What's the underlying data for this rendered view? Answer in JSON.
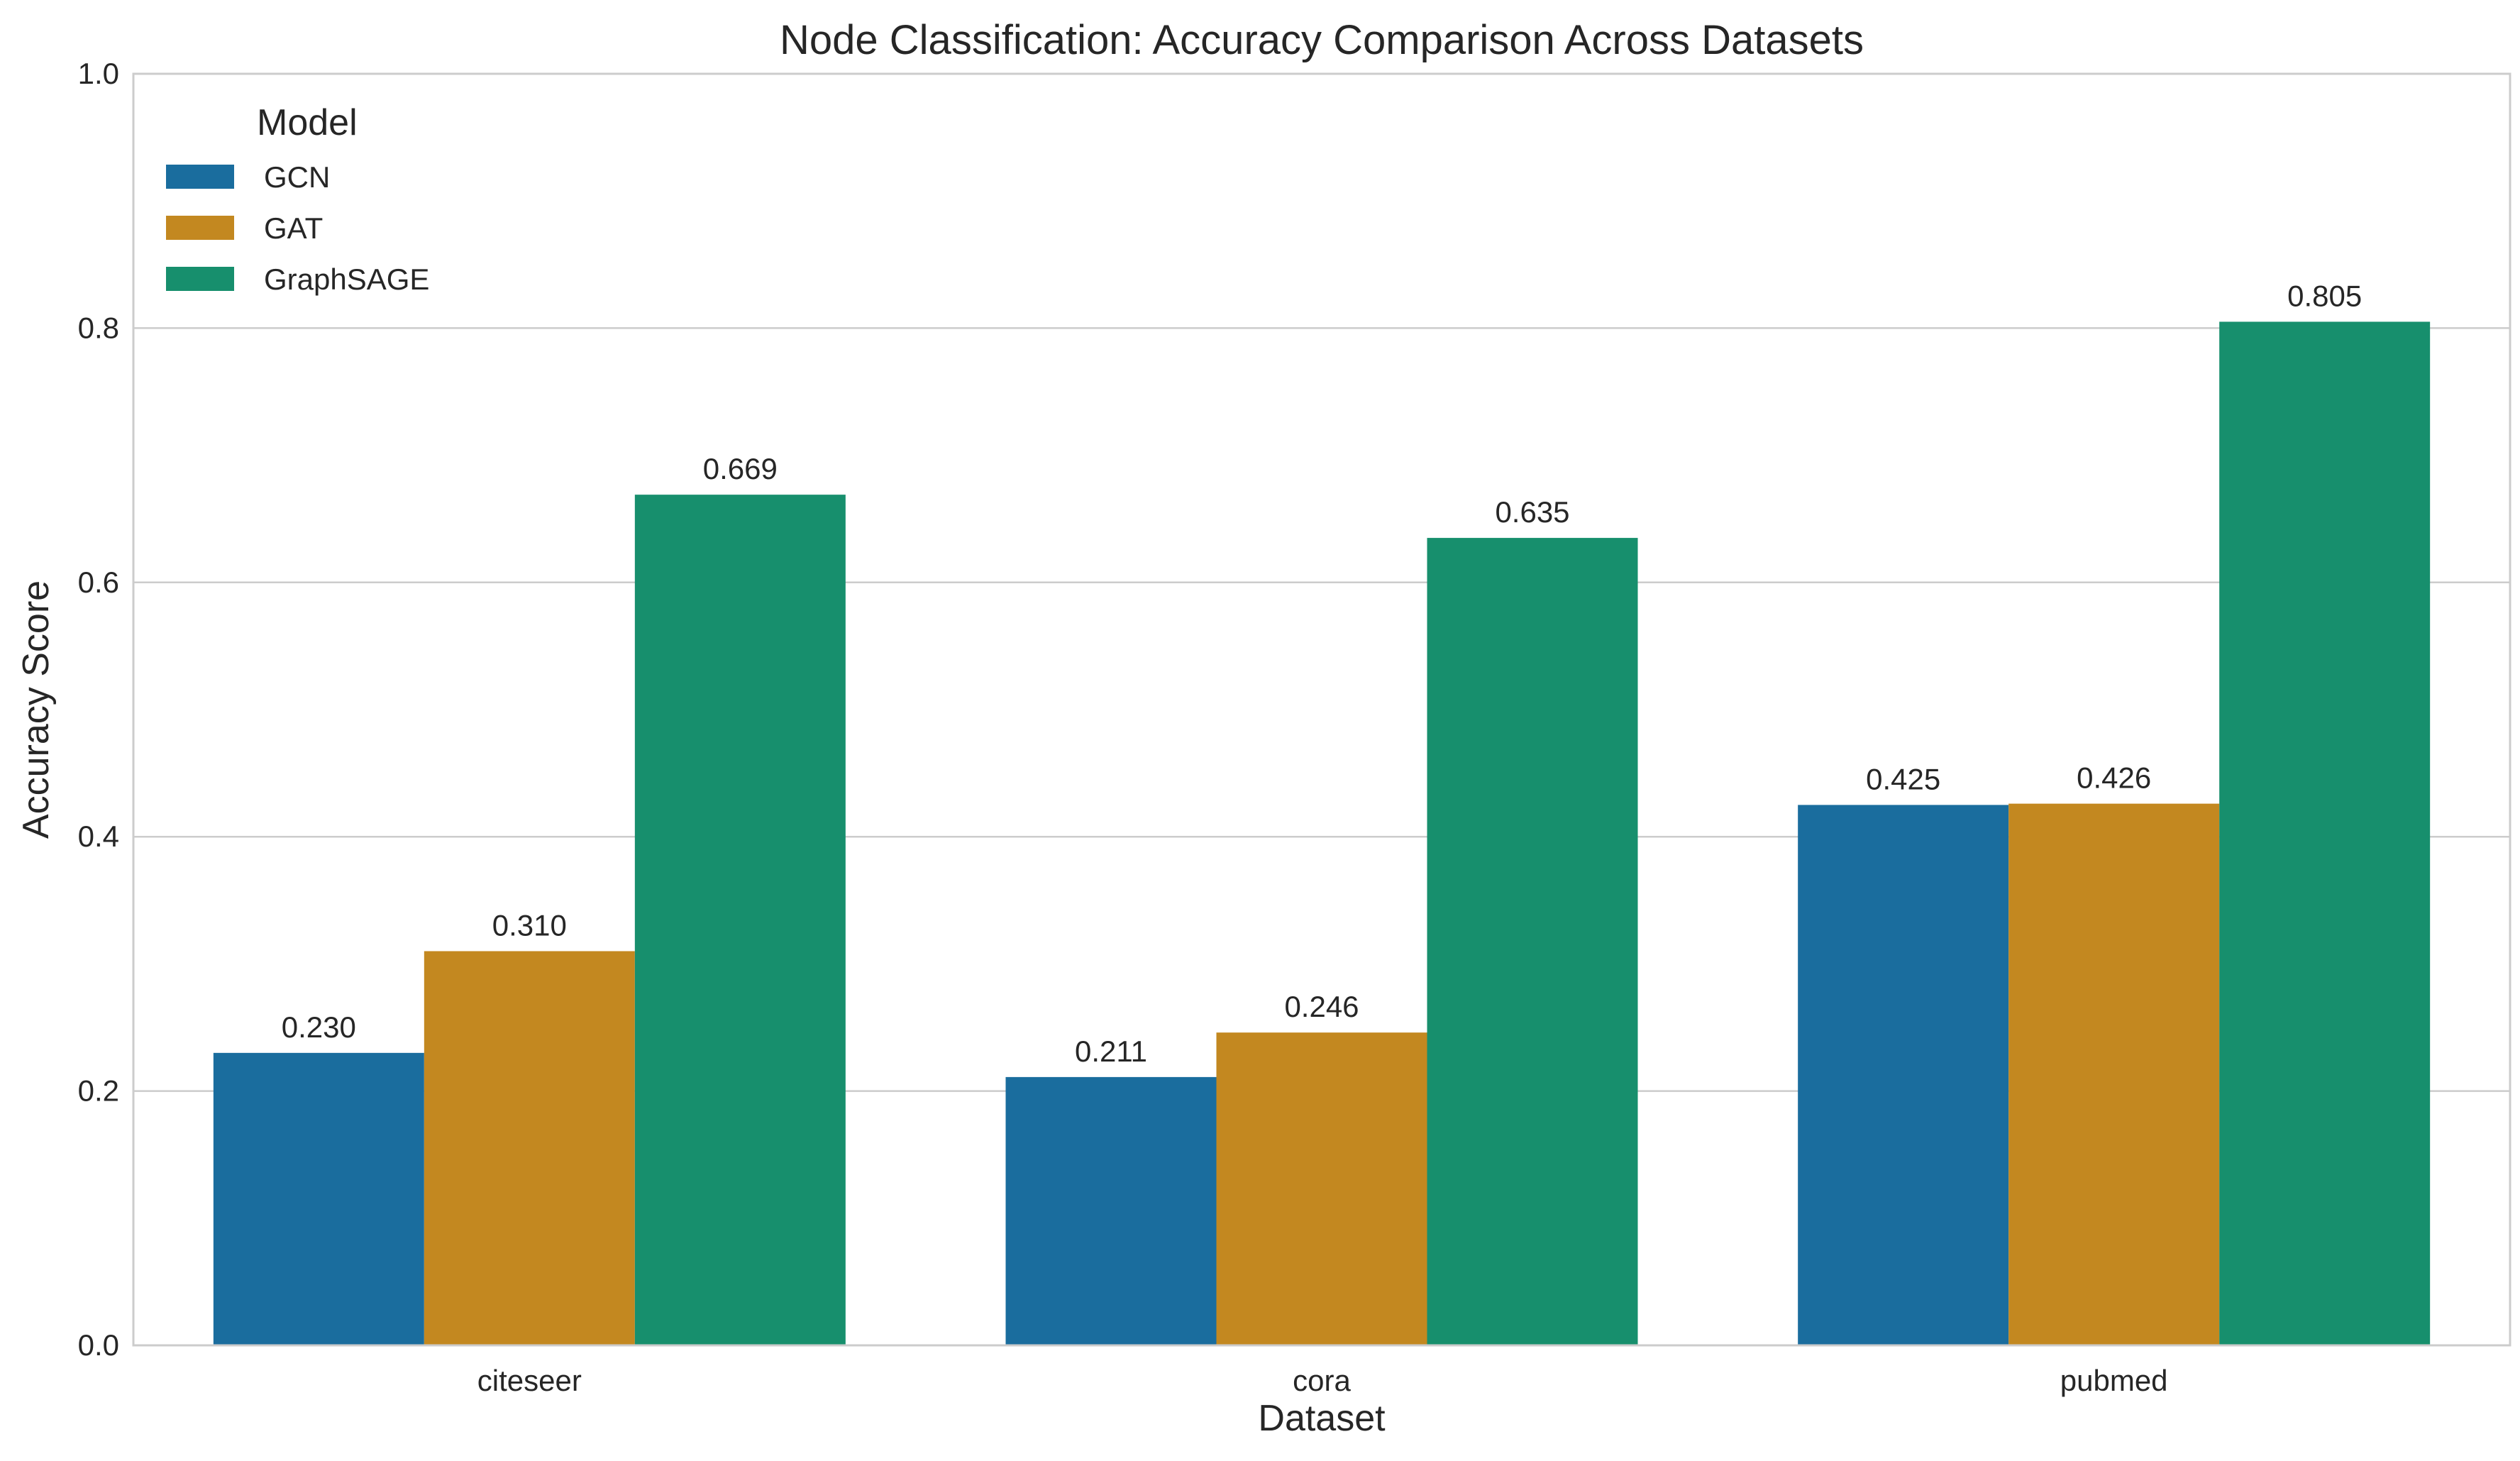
{
  "chart_data": {
    "type": "bar",
    "title": "Node Classification: Accuracy Comparison Across Datasets",
    "xlabel": "Dataset",
    "ylabel": "Accuracy Score",
    "categories": [
      "citeseer",
      "cora",
      "pubmed"
    ],
    "ylim": [
      0,
      1.0
    ],
    "yticks": [
      "0.0",
      "0.2",
      "0.4",
      "0.6",
      "0.8",
      "1.0"
    ],
    "grid": "horizontal",
    "legend": {
      "title": "Model",
      "position": "top-left"
    },
    "series": [
      {
        "name": "GCN",
        "color": "#1a6d9e",
        "values": [
          0.23,
          0.211,
          0.425
        ],
        "labels": [
          "0.230",
          "0.211",
          "0.425"
        ]
      },
      {
        "name": "GAT",
        "color": "#c38820",
        "values": [
          0.31,
          0.246,
          0.426
        ],
        "labels": [
          "0.310",
          "0.246",
          "0.426"
        ]
      },
      {
        "name": "GraphSAGE",
        "color": "#178f6d",
        "values": [
          0.669,
          0.635,
          0.805
        ],
        "labels": [
          "0.669",
          "0.635",
          "0.805"
        ]
      }
    ]
  }
}
